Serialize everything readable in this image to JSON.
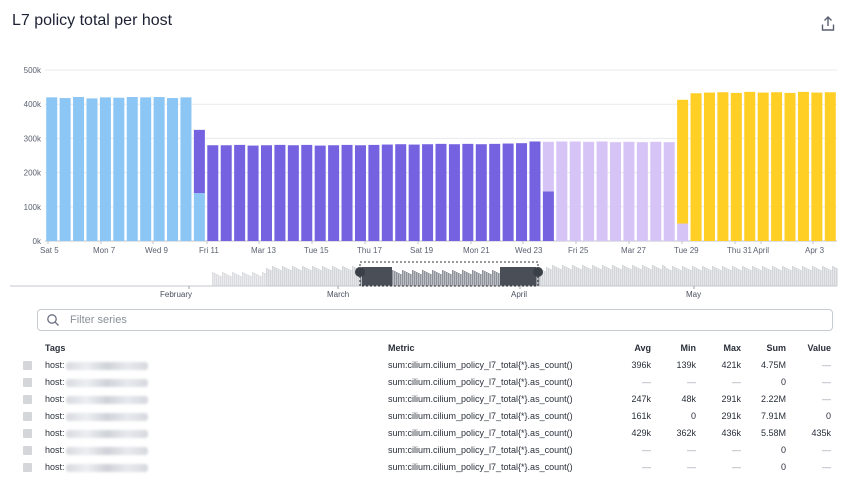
{
  "header": {
    "title": "L7 policy total per host",
    "export_icon": "share-export-icon"
  },
  "chart_data": {
    "type": "bar",
    "title": "L7 policy total per host",
    "stacked": true,
    "ylim": [
      0,
      500000
    ],
    "y_ticks": [
      {
        "value": 0,
        "label": "0k"
      },
      {
        "value": 100000,
        "label": "100k"
      },
      {
        "value": 200000,
        "label": "200k"
      },
      {
        "value": 300000,
        "label": "300k"
      },
      {
        "value": 400000,
        "label": "400k"
      },
      {
        "value": 500000,
        "label": "500k"
      }
    ],
    "x_tick_labels": [
      "Sat 5",
      "Mon 7",
      "Wed 9",
      "Fri 11",
      "Mar 13",
      "Tue 15",
      "Thu 17",
      "Sat 19",
      "Mon 21",
      "Wed 23",
      "Fri 25",
      "Mar 27",
      "Tue 29",
      "Thu 31",
      "April",
      "Apr 3"
    ],
    "grid": true,
    "series_colors": [
      "#8cc6f5",
      "#7462e0",
      "#d6c4f7",
      "#ffcf26"
    ],
    "series": [
      {
        "values": [
          420000,
          418000,
          421000,
          417000,
          420000,
          419000,
          421000,
          420000,
          421000,
          418000,
          420000,
          140000,
          0,
          0,
          0,
          0,
          0,
          0,
          0,
          0,
          0,
          0,
          0,
          0,
          0,
          0,
          0,
          0,
          0,
          0,
          0,
          0,
          0,
          0,
          0,
          0,
          0,
          0,
          0,
          0,
          0,
          0,
          0,
          0,
          0,
          0,
          0,
          0,
          0,
          0,
          0,
          0,
          0,
          0,
          0,
          0,
          0,
          0,
          0
        ]
      },
      {
        "values": [
          0,
          0,
          0,
          0,
          0,
          0,
          0,
          0,
          0,
          0,
          0,
          185000,
          280000,
          280000,
          281000,
          279000,
          280000,
          281000,
          280000,
          281000,
          279000,
          280000,
          281000,
          280000,
          281000,
          282000,
          283000,
          282000,
          283000,
          284000,
          283000,
          284000,
          283000,
          284000,
          285000,
          286000,
          291000,
          145000,
          0,
          0,
          0,
          0,
          0,
          0,
          0,
          0,
          0,
          0,
          0,
          0,
          0,
          0,
          0,
          0,
          0,
          0,
          0,
          0,
          0
        ]
      },
      {
        "values": [
          0,
          0,
          0,
          0,
          0,
          0,
          0,
          0,
          0,
          0,
          0,
          0,
          0,
          0,
          0,
          0,
          0,
          0,
          0,
          0,
          0,
          0,
          0,
          0,
          0,
          0,
          0,
          0,
          0,
          0,
          0,
          0,
          0,
          0,
          0,
          0,
          0,
          145000,
          291000,
          291000,
          290000,
          291000,
          289000,
          290000,
          289000,
          290000,
          289000,
          51000,
          0,
          0,
          0,
          0,
          0,
          0,
          0,
          0,
          0,
          0,
          0
        ]
      },
      {
        "values": [
          0,
          0,
          0,
          0,
          0,
          0,
          0,
          0,
          0,
          0,
          0,
          0,
          0,
          0,
          0,
          0,
          0,
          0,
          0,
          0,
          0,
          0,
          0,
          0,
          0,
          0,
          0,
          0,
          0,
          0,
          0,
          0,
          0,
          0,
          0,
          0,
          0,
          0,
          0,
          0,
          0,
          0,
          0,
          0,
          0,
          0,
          0,
          362000,
          432000,
          434000,
          435000,
          433000,
          436000,
          434000,
          435000,
          433000,
          436000,
          434000,
          435000
        ]
      }
    ]
  },
  "navigator": {
    "month_labels": [
      "February",
      "March",
      "April",
      "May"
    ]
  },
  "filter": {
    "placeholder": "Filter series"
  },
  "table": {
    "headers": {
      "tags": "Tags",
      "metric": "Metric",
      "avg": "Avg",
      "min": "Min",
      "max": "Max",
      "sum": "Sum",
      "value": "Value"
    },
    "rows": [
      {
        "tag": "host:",
        "metric": "sum:cilium.cilium_policy_l7_total{*}.as_count()",
        "avg": "396k",
        "min": "139k",
        "max": "421k",
        "sum": "4.75M",
        "value": "—"
      },
      {
        "tag": "host:",
        "metric": "sum:cilium.cilium_policy_l7_total{*}.as_count()",
        "avg": "—",
        "min": "—",
        "max": "—",
        "sum": "0",
        "value": "—"
      },
      {
        "tag": "host:",
        "metric": "sum:cilium.cilium_policy_l7_total{*}.as_count()",
        "avg": "247k",
        "min": "48k",
        "max": "291k",
        "sum": "2.22M",
        "value": "—"
      },
      {
        "tag": "host:",
        "metric": "sum:cilium.cilium_policy_l7_total{*}.as_count()",
        "avg": "161k",
        "min": "0",
        "max": "291k",
        "sum": "7.91M",
        "value": "0"
      },
      {
        "tag": "host:",
        "metric": "sum:cilium.cilium_policy_l7_total{*}.as_count()",
        "avg": "429k",
        "min": "362k",
        "max": "436k",
        "sum": "5.58M",
        "value": "435k"
      },
      {
        "tag": "host:",
        "metric": "sum:cilium.cilium_policy_l7_total{*}.as_count()",
        "avg": "—",
        "min": "—",
        "max": "—",
        "sum": "0",
        "value": "—"
      },
      {
        "tag": "host:",
        "metric": "sum:cilium.cilium_policy_l7_total{*}.as_count()",
        "avg": "—",
        "min": "—",
        "max": "—",
        "sum": "0",
        "value": "—"
      }
    ]
  }
}
